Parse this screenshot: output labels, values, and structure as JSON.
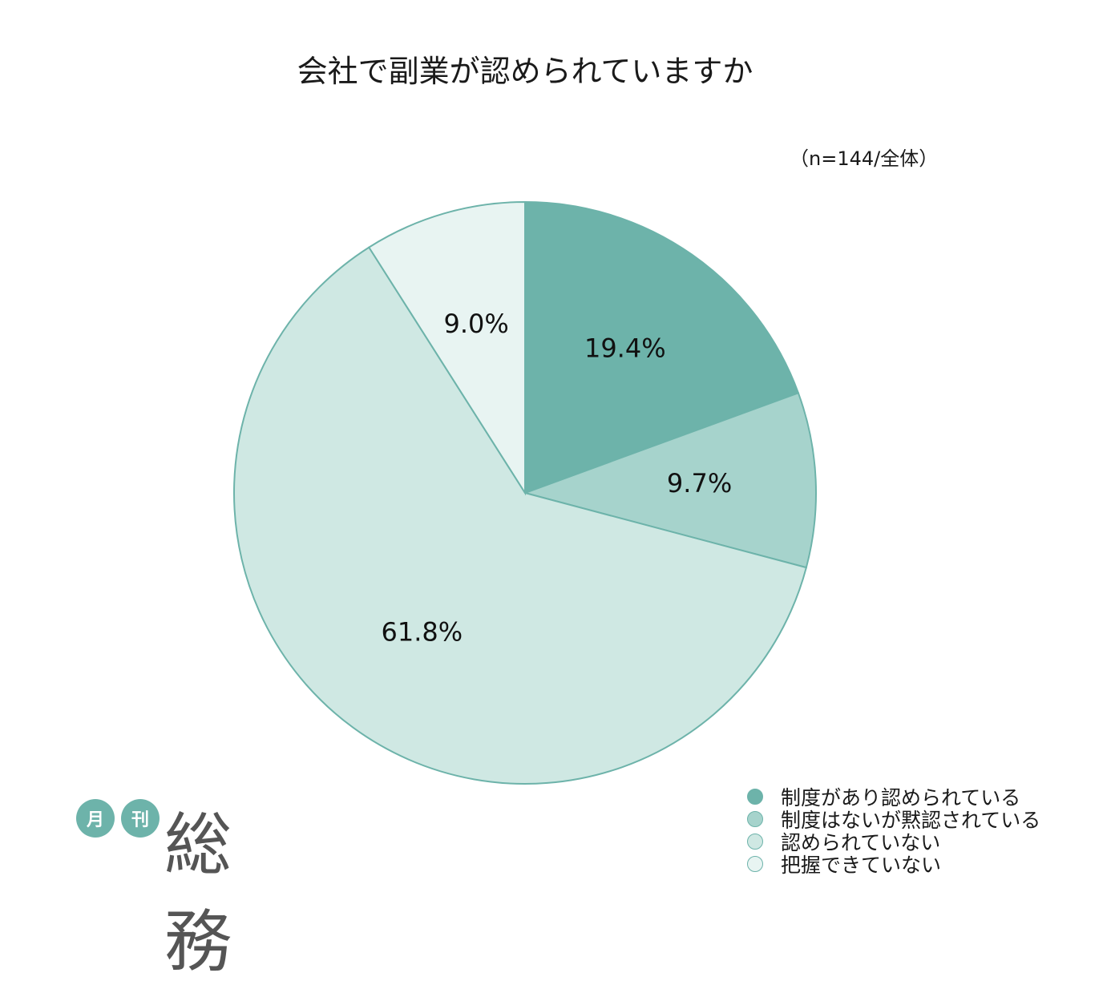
{
  "chart_data": {
    "type": "pie",
    "title": "会社で副業が認められていますか",
    "note": "（n=144/全体）",
    "categories": [
      "制度があり認められている",
      "制度はないが黙認されている",
      "認められていない",
      "把握できていない"
    ],
    "values": [
      19.4,
      9.7,
      61.8,
      9.0
    ],
    "labels": [
      "19.4%",
      "9.7%",
      "61.8%",
      "9.0%"
    ],
    "colors": [
      "#6db3aa",
      "#a6d3cc",
      "#cfe8e3",
      "#e8f4f2"
    ],
    "edge_color": "#6db3aa",
    "start": "12 o'clock",
    "direction": "clockwise",
    "legend_position": "bottom-right"
  },
  "logo": {
    "badge_1": "月",
    "badge_2": "刊",
    "word": "総務"
  }
}
